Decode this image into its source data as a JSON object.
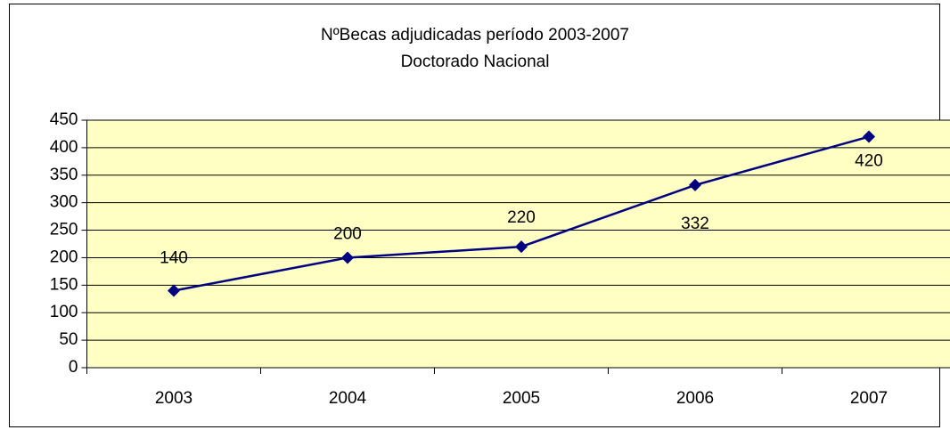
{
  "chart_data": {
    "type": "line",
    "title": "NºBecas adjudicadas período 2003-2007",
    "subtitle": "Doctorado Nacional",
    "categories": [
      "2003",
      "2004",
      "2005",
      "2006",
      "2007"
    ],
    "series": [
      {
        "name": "Becas",
        "color": "#000080",
        "values": [
          140,
          200,
          220,
          332,
          420
        ]
      }
    ],
    "ylim": [
      0,
      450
    ],
    "yticks": [
      0,
      50,
      100,
      150,
      200,
      250,
      300,
      350,
      400,
      450
    ],
    "grid": true,
    "plot_background": "#ffffc4"
  }
}
